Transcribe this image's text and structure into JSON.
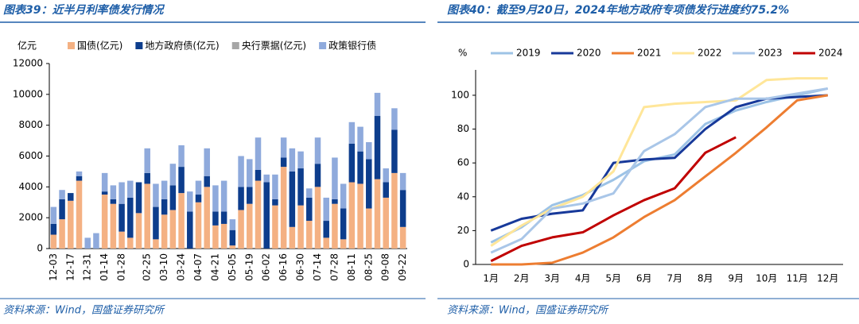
{
  "chart_data": [
    {
      "type": "bar",
      "title": "图表39：近半月利率债发行情况",
      "source": "资料来源：Wind，国盛证券研究所",
      "y_label": "亿元",
      "categories": [
        "12-03",
        null,
        "12-17",
        null,
        "12-31",
        null,
        "01-14",
        null,
        "01-28",
        null,
        null,
        "02-25",
        null,
        "03-10",
        null,
        "03-24",
        null,
        "04-07",
        null,
        "04-21",
        null,
        "05-05",
        null,
        "05-19",
        null,
        "06-02",
        null,
        "06-16",
        null,
        "06-30",
        null,
        "07-14",
        null,
        "07-28",
        null,
        "08-11",
        null,
        "08-25",
        null,
        "09-08",
        null,
        "09-22"
      ],
      "series": [
        {
          "name": "国债(亿元)",
          "color": "#f4b183",
          "values": [
            900,
            1900,
            3100,
            4400,
            0,
            0,
            3500,
            2900,
            1100,
            700,
            2300,
            4200,
            600,
            2200,
            2500,
            3600,
            0,
            3000,
            4000,
            1500,
            1600,
            200,
            2500,
            2900,
            4400,
            0,
            2800,
            5300,
            1400,
            2800,
            1800,
            4000,
            700,
            2900,
            600,
            4300,
            4200,
            2600,
            4500,
            3300,
            4900,
            1400
          ]
        },
        {
          "name": "地方政府债(亿元)",
          "color": "#0d3d8c",
          "values": [
            700,
            1300,
            500,
            300,
            0,
            0,
            200,
            300,
            1800,
            2600,
            2000,
            700,
            2100,
            1000,
            1600,
            1700,
            2400,
            500,
            700,
            900,
            800,
            1000,
            1500,
            1100,
            700,
            4300,
            400,
            600,
            3600,
            2400,
            1500,
            1500,
            1100,
            300,
            2000,
            2500,
            2100,
            3200,
            4100,
            1000,
            2800,
            2400
          ]
        },
        {
          "name": "央行票据(亿元)",
          "color": "#a6a6a6",
          "values": [
            0,
            0,
            0,
            0,
            0,
            0,
            0,
            0,
            0,
            0,
            0,
            0,
            0,
            0,
            0,
            0,
            0,
            0,
            0,
            0,
            0,
            0,
            0,
            0,
            0,
            0,
            0,
            0,
            0,
            0,
            0,
            0,
            0,
            0,
            0,
            0,
            0,
            0,
            0,
            0,
            0,
            0
          ]
        },
        {
          "name": "政策银行债",
          "color": "#8faadc",
          "values": [
            1100,
            600,
            0,
            300,
            700,
            1000,
            1200,
            900,
            1400,
            1100,
            0,
            1600,
            1500,
            1200,
            1400,
            1400,
            1300,
            900,
            1800,
            1700,
            2000,
            700,
            2000,
            1800,
            2100,
            500,
            1600,
            1300,
            1500,
            1100,
            600,
            1700,
            1500,
            2700,
            1600,
            1400,
            1600,
            1100,
            1500,
            900,
            1400,
            1100
          ]
        }
      ],
      "ylim": [
        0,
        12000
      ],
      "yticks": [
        0,
        2000,
        4000,
        6000,
        8000,
        10000,
        12000
      ],
      "stacked": true,
      "grid": false
    },
    {
      "type": "line",
      "title": "图表40：截至9月20日，2024年地方政府专项债发行进度约75.2%",
      "source": "资料来源：Wind，国盛证券研究所",
      "y_label": "%",
      "categories": [
        "1月",
        "2月",
        "3月",
        "4月",
        "5月",
        "6月",
        "7月",
        "8月",
        "9月",
        "10月",
        "11月",
        "12月"
      ],
      "series": [
        {
          "name": "2019",
          "color": "#9dc3e6",
          "values": [
            13,
            22,
            35,
            41,
            50,
            61,
            65,
            83,
            91,
            96,
            100,
            104
          ]
        },
        {
          "name": "2020",
          "color": "#17399a",
          "values": [
            20,
            27,
            30,
            32,
            60,
            62,
            63,
            80,
            93,
            98,
            99,
            100
          ]
        },
        {
          "name": "2021",
          "color": "#ed7d31",
          "values": [
            0,
            0,
            1,
            7,
            16,
            28,
            38,
            52,
            66,
            81,
            97,
            100
          ]
        },
        {
          "name": "2022",
          "color": "#ffe699",
          "values": [
            11,
            23,
            33,
            40,
            55,
            93,
            95,
            96,
            97,
            109,
            110,
            110
          ]
        },
        {
          "name": "2023",
          "color": "#a9c6e8",
          "values": [
            7,
            15,
            33,
            36,
            42,
            67,
            77,
            93,
            98,
            98,
            101,
            104
          ]
        },
        {
          "name": "2024",
          "color": "#c00000",
          "values": [
            2,
            11,
            16,
            19,
            29,
            38,
            45,
            66,
            75.2,
            null,
            null,
            null
          ]
        }
      ],
      "ylim": [
        0,
        115
      ],
      "yticks": [
        0,
        20,
        40,
        60,
        80,
        100
      ],
      "grid": false
    }
  ]
}
